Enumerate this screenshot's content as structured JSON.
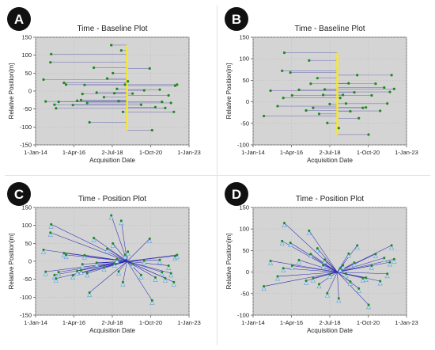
{
  "chart_data": [
    {
      "panel_letter": "A",
      "type": "scatter",
      "title": "Time - Baseline Plot",
      "xlabel": "Acquisition Date",
      "ylabel": "Relative Position[m]",
      "x_tick_labels": [
        "1-Jan-14",
        "1-Apr-16",
        "2-Jul-18",
        "1-Oct-20",
        "1-Jan-23"
      ],
      "xlim": [
        "2014-01-01",
        "2023-01-01"
      ],
      "ylim": [
        -150,
        150
      ],
      "y_ticks": [
        150,
        100,
        50,
        0,
        -50,
        -100,
        -150
      ],
      "grid": true,
      "master_date": "2019-05-15",
      "points": [
        {
          "x": "2014-12-01",
          "y": 103
        },
        {
          "x": "2014-11-15",
          "y": 80
        },
        {
          "x": "2014-06-20",
          "y": 32
        },
        {
          "x": "2014-08-05",
          "y": -29
        },
        {
          "x": "2015-02-10",
          "y": -38
        },
        {
          "x": "2015-03-15",
          "y": -48
        },
        {
          "x": "2015-05-10",
          "y": -30
        },
        {
          "x": "2015-09-01",
          "y": 23
        },
        {
          "x": "2015-10-15",
          "y": 18
        },
        {
          "x": "2016-03-10",
          "y": -39
        },
        {
          "x": "2016-06-10",
          "y": -27
        },
        {
          "x": "2016-09-01",
          "y": -25
        },
        {
          "x": "2016-10-01",
          "y": -8
        },
        {
          "x": "2016-11-15",
          "y": 17
        },
        {
          "x": "2017-01-10",
          "y": -33
        },
        {
          "x": "2017-03-01",
          "y": -87
        },
        {
          "x": "2017-06-01",
          "y": 65
        },
        {
          "x": "2017-08-01",
          "y": -4
        },
        {
          "x": "2018-01-05",
          "y": -17
        },
        {
          "x": "2018-03-15",
          "y": 35
        },
        {
          "x": "2018-06-10",
          "y": 128
        },
        {
          "x": "2018-07-15",
          "y": 50
        },
        {
          "x": "2018-08-15",
          "y": -6
        },
        {
          "x": "2018-10-10",
          "y": 6
        },
        {
          "x": "2018-11-15",
          "y": -28
        },
        {
          "x": "2019-01-10",
          "y": 113
        },
        {
          "x": "2019-02-15",
          "y": -58
        },
        {
          "x": "2019-04-01",
          "y": 18
        },
        {
          "x": "2019-06-01",
          "y": 27
        },
        {
          "x": "2019-09-10",
          "y": -7
        },
        {
          "x": "2020-03-10",
          "y": -38
        },
        {
          "x": "2020-05-15",
          "y": 2
        },
        {
          "x": "2020-09-10",
          "y": 63
        },
        {
          "x": "2020-11-01",
          "y": -109
        },
        {
          "x": "2021-01-10",
          "y": -45
        },
        {
          "x": "2021-04-15",
          "y": 4
        },
        {
          "x": "2021-06-01",
          "y": -30
        },
        {
          "x": "2021-08-10",
          "y": -47
        },
        {
          "x": "2021-10-20",
          "y": -12
        },
        {
          "x": "2021-12-10",
          "y": -33
        },
        {
          "x": "2022-02-10",
          "y": -58
        },
        {
          "x": "2022-03-10",
          "y": 15
        },
        {
          "x": "2022-04-20",
          "y": 18
        }
      ]
    },
    {
      "panel_letter": "B",
      "type": "scatter",
      "title": "Time - Baseline Plot",
      "xlabel": "Acquisition Date",
      "ylabel": "Relative Position[m]",
      "x_tick_labels": [
        "1-Jan-14",
        "1-Apr-16",
        "2-Jul-18",
        "1-Oct-20",
        "1-Jan-23"
      ],
      "xlim": [
        "2014-01-01",
        "2023-01-01"
      ],
      "ylim": [
        -100,
        150
      ],
      "y_ticks": [
        150,
        100,
        50,
        0,
        -50,
        -100
      ],
      "grid": true,
      "master_date": "2018-12-10",
      "points": [
        {
          "x": "2014-08-20",
          "y": -33
        },
        {
          "x": "2015-01-10",
          "y": 26
        },
        {
          "x": "2015-06-10",
          "y": -10
        },
        {
          "x": "2015-09-15",
          "y": 72
        },
        {
          "x": "2015-10-10",
          "y": 9
        },
        {
          "x": "2015-11-01",
          "y": 114
        },
        {
          "x": "2016-03-10",
          "y": 68
        },
        {
          "x": "2016-04-15",
          "y": 15
        },
        {
          "x": "2016-09-10",
          "y": 28
        },
        {
          "x": "2017-02-10",
          "y": -20
        },
        {
          "x": "2017-04-15",
          "y": 96
        },
        {
          "x": "2017-05-20",
          "y": 42
        },
        {
          "x": "2017-07-10",
          "y": -14
        },
        {
          "x": "2017-10-10",
          "y": 55
        },
        {
          "x": "2017-11-15",
          "y": -28
        },
        {
          "x": "2018-02-10",
          "y": 16
        },
        {
          "x": "2018-03-15",
          "y": 29
        },
        {
          "x": "2018-05-10",
          "y": -49
        },
        {
          "x": "2018-07-01",
          "y": -5
        },
        {
          "x": "2019-01-10",
          "y": -61
        },
        {
          "x": "2019-02-10",
          "y": 9
        },
        {
          "x": "2019-04-10",
          "y": 16
        },
        {
          "x": "2019-06-15",
          "y": -4
        },
        {
          "x": "2019-08-10",
          "y": 43
        },
        {
          "x": "2019-09-15",
          "y": -22
        },
        {
          "x": "2019-12-10",
          "y": 22
        },
        {
          "x": "2020-02-10",
          "y": 62
        },
        {
          "x": "2020-03-15",
          "y": -38
        },
        {
          "x": "2020-06-10",
          "y": -14
        },
        {
          "x": "2020-08-15",
          "y": -13
        },
        {
          "x": "2020-10-10",
          "y": -76
        },
        {
          "x": "2020-12-15",
          "y": 15
        },
        {
          "x": "2021-03-10",
          "y": 42
        },
        {
          "x": "2021-06-15",
          "y": -21
        },
        {
          "x": "2021-09-10",
          "y": 33
        },
        {
          "x": "2021-11-15",
          "y": -4
        },
        {
          "x": "2022-01-10",
          "y": 23
        },
        {
          "x": "2022-02-15",
          "y": 62
        },
        {
          "x": "2022-04-10",
          "y": 30
        }
      ]
    },
    {
      "panel_letter": "C",
      "type": "scatter",
      "title": "Time - Position Plot",
      "xlabel": "Acquisition Date",
      "ylabel": "Relative Position[m]",
      "x_tick_labels": [
        "1-Jan-14",
        "1-Apr-16",
        "2-Jul-18",
        "1-Oct-20",
        "1-Jan-23"
      ],
      "xlim": [
        "2014-01-01",
        "2023-01-01"
      ],
      "ylim": [
        -150,
        150
      ],
      "y_ticks": [
        150,
        100,
        50,
        0,
        -50,
        -100,
        -150
      ],
      "grid": true,
      "center": {
        "x": "2019-05-15",
        "y": 0
      },
      "points_ref": "A"
    },
    {
      "panel_letter": "D",
      "type": "scatter",
      "title": "Time - Position Plot",
      "xlabel": "Acquisition Date",
      "ylabel": "Relative Position[m]",
      "x_tick_labels": [
        "1-Jan-14",
        "1-Apr-16",
        "2-Jul-18",
        "1-Oct-20",
        "1-Jan-23"
      ],
      "xlim": [
        "2014-01-01",
        "2023-01-01"
      ],
      "ylim": [
        -100,
        150
      ],
      "y_ticks": [
        150,
        100,
        50,
        0,
        -50,
        -100
      ],
      "grid": true,
      "center": {
        "x": "2018-12-10",
        "y": 0
      },
      "points_ref": "B"
    }
  ],
  "colors": {
    "plot_background": "#d4d4d4",
    "grid": "#bdbdbd",
    "point_green": "#1e8a1e",
    "baseline_line": "#7a7ab8",
    "spoke_line": "#2b2bb0",
    "master_yellow": "#ffee00",
    "triangle_fill": "#bfe4ff",
    "triangle_stroke": "#6a9cc8"
  }
}
